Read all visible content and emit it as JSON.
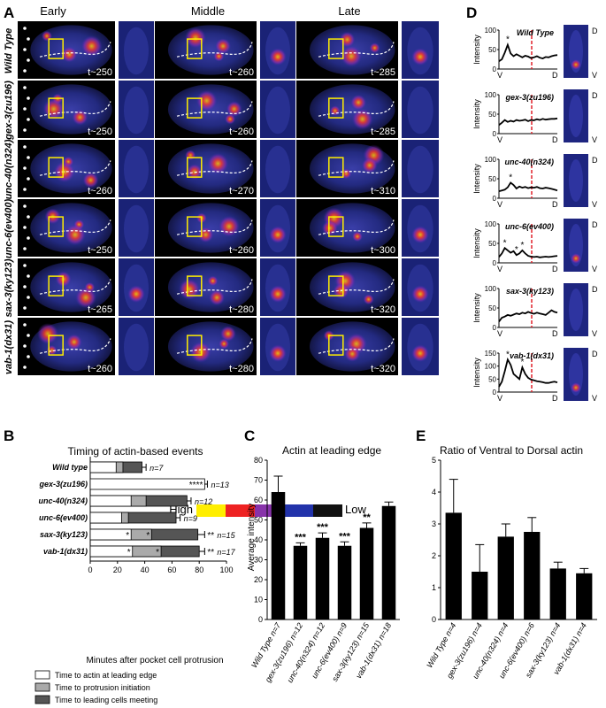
{
  "panels": {
    "A": "A",
    "B": "B",
    "C": "C",
    "D": "D",
    "E": "E"
  },
  "panelA": {
    "columns": [
      "Early",
      "Middle",
      "Late"
    ],
    "rows": [
      {
        "label": "Wild Type",
        "times": [
          "t~250",
          "t~260",
          "t~285"
        ]
      },
      {
        "label": "gex-3(zu196)",
        "times": [
          "t~250",
          "t~260",
          "t~285"
        ]
      },
      {
        "label": "unc-40(n324)",
        "times": [
          "t~260",
          "t~270",
          "t~310"
        ]
      },
      {
        "label": "unc-6(ev400)",
        "times": [
          "t~250",
          "t~260",
          "t~300"
        ]
      },
      {
        "label": "sax-3(ky123)",
        "times": [
          "t~265",
          "t~280",
          "t~320"
        ]
      },
      {
        "label": "vab-1(dx31)",
        "times": [
          "t~260",
          "t~280",
          "t~320"
        ]
      }
    ],
    "scale": {
      "high": "High",
      "low": "Low",
      "colors": [
        "#ffee00",
        "#ee2222",
        "#8833aa",
        "#2233aa",
        "#111111"
      ]
    }
  },
  "panelD": {
    "ylabel": "Intensity",
    "xstart": "V",
    "xend": "D",
    "side_top": "D",
    "side_bottom": "V",
    "line_color": "#000000",
    "marker_color": "#e0202a",
    "plots": [
      {
        "name": "Wild Type",
        "ylim": [
          0,
          100
        ],
        "ticks": [
          "0",
          "50",
          "100"
        ],
        "values": [
          20,
          25,
          42,
          62,
          40,
          33,
          38,
          34,
          30,
          34,
          32,
          28,
          30,
          33,
          29,
          27,
          31,
          30,
          33,
          35,
          36
        ],
        "stars": [
          "*"
        ]
      },
      {
        "name": "gex-3(zu196)",
        "ylim": [
          0,
          100
        ],
        "ticks": [
          "0",
          "50",
          "100"
        ],
        "values": [
          22,
          28,
          35,
          30,
          33,
          31,
          35,
          33,
          34,
          36,
          32,
          35,
          34,
          37,
          35,
          38,
          36,
          37,
          38,
          38,
          39
        ],
        "stars": []
      },
      {
        "name": "unc-40(n324)",
        "ylim": [
          0,
          100
        ],
        "ticks": [
          "0",
          "50",
          "100"
        ],
        "values": [
          18,
          20,
          22,
          28,
          40,
          34,
          25,
          30,
          27,
          29,
          26,
          28,
          27,
          29,
          26,
          25,
          27,
          26,
          24,
          22,
          20
        ],
        "stars": [
          "*"
        ]
      },
      {
        "name": "unc-6(ev400)",
        "ylim": [
          0,
          100
        ],
        "ticks": [
          "0",
          "50",
          "100"
        ],
        "values": [
          15,
          24,
          38,
          32,
          26,
          30,
          20,
          24,
          32,
          24,
          18,
          16,
          15,
          16,
          14,
          15,
          16,
          15,
          16,
          17,
          18
        ],
        "stars": [
          "*",
          "*",
          "*"
        ]
      },
      {
        "name": "sax-3(ky123)",
        "ylim": [
          0,
          100
        ],
        "ticks": [
          "0",
          "50",
          "100"
        ],
        "values": [
          15,
          25,
          28,
          32,
          30,
          33,
          36,
          34,
          38,
          36,
          40,
          37,
          35,
          38,
          36,
          34,
          32,
          38,
          44,
          40,
          38
        ],
        "stars": []
      },
      {
        "name": "vab-1(dx31)",
        "ylim": [
          0,
          150
        ],
        "ticks": [
          "0",
          "50",
          "100",
          "150"
        ],
        "values": [
          20,
          40,
          80,
          125,
          105,
          70,
          60,
          50,
          95,
          70,
          55,
          48,
          45,
          42,
          40,
          38,
          35,
          35,
          38,
          40,
          37
        ],
        "stars": [
          "*",
          "*"
        ]
      }
    ]
  },
  "panelB": {
    "title": "Timing of actin-based events",
    "xlabel": "Minutes after pocket cell protrusion",
    "xticks": [
      "0",
      "20",
      "40",
      "60",
      "80",
      "100"
    ],
    "xlim": [
      0,
      100
    ],
    "colors": {
      "edge": "#ffffff",
      "init": "#aaaaaa",
      "meet": "#555555"
    },
    "legend": [
      "Time to actin at leading edge",
      "Time to protrusion initiation",
      "Time to leading cells meeting"
    ],
    "rows": [
      {
        "label": "Wild type",
        "edge": 19,
        "init": 24,
        "meet": 38,
        "err": 3,
        "nlabel": "n=7",
        "stars": [],
        "end_star": ""
      },
      {
        "label": "gex-3(zu196)",
        "edge": 84,
        "init": 0,
        "meet": 0,
        "err": 2,
        "nlabel": "n=13",
        "stars": [],
        "end_star": "****"
      },
      {
        "label": "unc-40(n324)",
        "edge": 30,
        "init": 41,
        "meet": 71,
        "err": 3,
        "nlabel": "n=12",
        "stars": [],
        "end_star": ""
      },
      {
        "label": "unc-6(ev400)",
        "edge": 23,
        "init": 28,
        "meet": 63,
        "err": 3,
        "nlabel": "n=9",
        "stars": [],
        "end_star": ""
      },
      {
        "label": "sax-3(ky123)",
        "edge": 30,
        "init": 45,
        "meet": 79,
        "err": 5,
        "nlabel": "n=15",
        "stars": [
          "*",
          "*"
        ],
        "end_star": "**"
      },
      {
        "label": "vab-1(dx31)",
        "edge": 31,
        "init": 52,
        "meet": 80,
        "err": 4,
        "nlabel": "n=17",
        "stars": [
          "*",
          "*"
        ],
        "end_star": "**"
      }
    ]
  },
  "chart_data": [
    {
      "type": "bar",
      "title": "Actin at leading edge",
      "ylabel": "Average intensity",
      "ylim": [
        0,
        80
      ],
      "yticks": [
        "0",
        "10",
        "20",
        "30",
        "40",
        "50",
        "60",
        "70",
        "80"
      ],
      "categories": [
        "Wild Type n=7",
        "gex-3(zu196) n=12",
        "unc-40(n324) n=12",
        "unc-6(ev400) n=9",
        "sax-3(ky123) n=15",
        "vab-1(dx31) n=18"
      ],
      "values": [
        64,
        37,
        41,
        37,
        46,
        57
      ],
      "errors": [
        8,
        1.5,
        2.5,
        2,
        2.5,
        2
      ],
      "sig": [
        "",
        "***",
        "***",
        "***",
        "**",
        ""
      ]
    },
    {
      "type": "bar",
      "title": "Ratio of Ventral to Dorsal actin",
      "ylim": [
        0,
        5
      ],
      "yticks": [
        "0",
        "1",
        "2",
        "3",
        "4",
        "5"
      ],
      "categories": [
        "Wild Type n=4",
        "gex-3(zu196) n=4",
        "unc-40(n324) n=4",
        "unc-6(ev400) n=6",
        "sax-3(ky123) n=4",
        "vab-1(dx31) n=4"
      ],
      "values": [
        3.35,
        1.5,
        2.6,
        2.75,
        1.6,
        1.45
      ],
      "errors": [
        1.05,
        0.85,
        0.4,
        0.45,
        0.2,
        0.15
      ],
      "sig": [
        "",
        "",
        "",
        "",
        "",
        ""
      ]
    }
  ]
}
